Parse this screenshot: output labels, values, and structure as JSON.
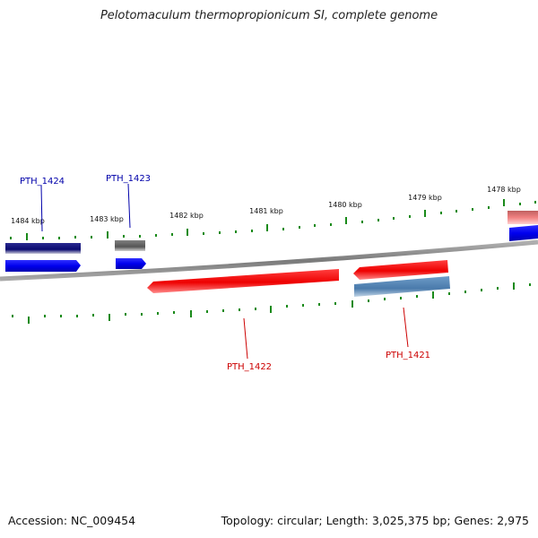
{
  "title": "Pelotomaculum thermopropionicum SI, complete genome",
  "accession_text": "Accession: NC_009454",
  "summary_text": "Topology: circular; Length: 3,025,375 bp; Genes: 2,975",
  "kbp_labels": [
    "1484 kbp",
    "1483 kbp",
    "1482 kbp",
    "1481 kbp",
    "1480 kbp",
    "1479 kbp",
    "1478 kbp"
  ],
  "genes": {
    "pth_1424": "PTH_1424",
    "pth_1423": "PTH_1423",
    "pth_1422": "PTH_1422",
    "pth_1421": "PTH_1421"
  },
  "colors": {
    "forward_gene": "#0000ee",
    "reverse_gene": "#ee0000",
    "forward_label": "#0000aa",
    "reverse_label": "#cc0000",
    "tick": "#1a8a1a",
    "backbone": "#888888"
  }
}
